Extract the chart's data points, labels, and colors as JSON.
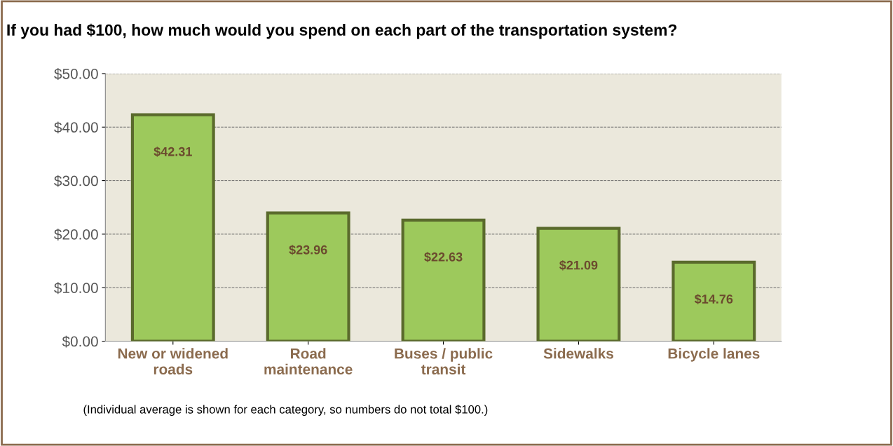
{
  "chart_data": {
    "type": "bar",
    "title": "If you had $100, how much would you spend on each part of the transportation system?",
    "categories": [
      "New or widened\nroads",
      "Road\nmaintenance",
      "Buses / public\ntransit",
      "Sidewalks",
      "Bicycle lanes"
    ],
    "values": [
      42.31,
      23.96,
      22.63,
      21.09,
      14.76
    ],
    "value_labels": [
      "$42.31",
      "$23.96",
      "$22.63",
      "$21.09",
      "$14.76"
    ],
    "color": "#9dc95c",
    "ylim": [
      0,
      50
    ],
    "yticks": [
      {
        "value": 0,
        "label": "$0.00"
      },
      {
        "value": 10,
        "label": "$10.00"
      },
      {
        "value": 20,
        "label": "$20.00"
      },
      {
        "value": 30,
        "label": "$30.00"
      },
      {
        "value": 40,
        "label": "$40.00"
      },
      {
        "value": 50,
        "label": "$50.00"
      }
    ],
    "grid": "y",
    "annotations": [
      "(Individual average is shown for each category, so numbers do not total $100.)"
    ]
  }
}
